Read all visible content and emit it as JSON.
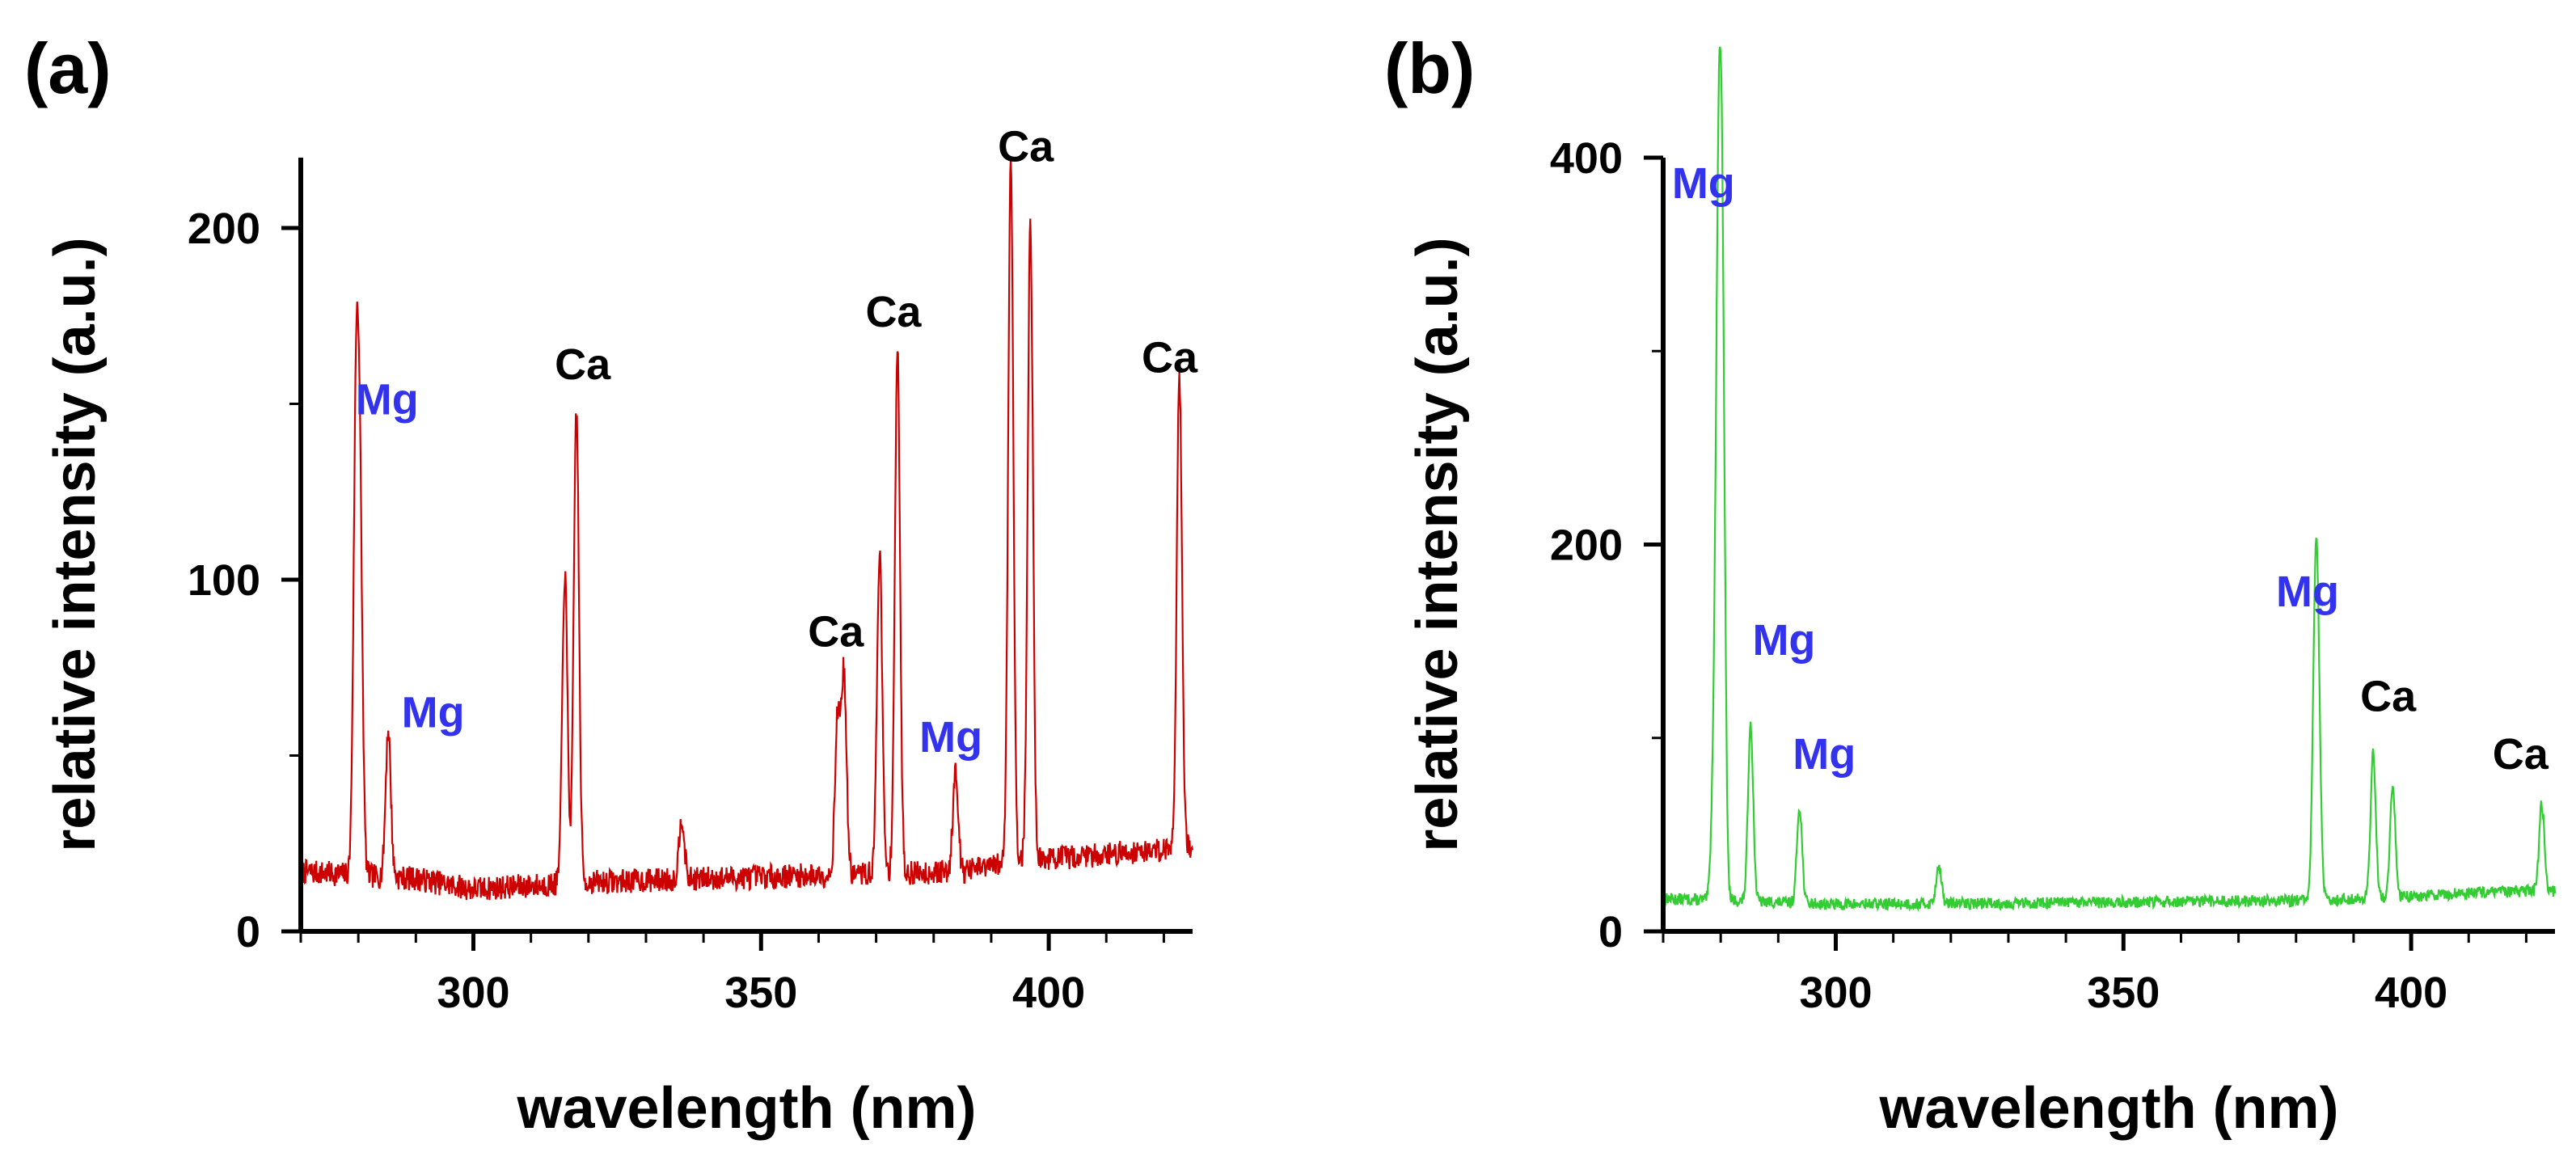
{
  "chart_data": [
    {
      "type": "line",
      "panel_label": "(a)",
      "xlabel": "wavelength (nm)",
      "ylabel": "relative intensity (a.u.)",
      "xlim": [
        270,
        425
      ],
      "ylim": [
        0,
        220
      ],
      "x_ticks": [
        300,
        350,
        400
      ],
      "y_ticks": [
        0,
        100,
        200
      ],
      "grid": false,
      "series": [
        {
          "color": "#cc0000",
          "baseline": [
            [
              270,
              17
            ],
            [
              290,
              15
            ],
            [
              300,
              12
            ],
            [
              320,
              14
            ],
            [
              360,
              16
            ],
            [
              385,
              17
            ],
            [
              395,
              20
            ],
            [
              410,
              22
            ],
            [
              425,
              24
            ]
          ],
          "noise": 3.5,
          "peaks": [
            [
              279.6,
              125
            ],
            [
              280.3,
              92
            ],
            [
              285.2,
              42
            ],
            [
              315.9,
              88
            ],
            [
              317.9,
              135
            ],
            [
              336.2,
              18
            ],
            [
              363.3,
              44
            ],
            [
              364.4,
              56
            ],
            [
              370.6,
              92
            ],
            [
              373.7,
              148
            ],
            [
              383.8,
              30
            ],
            [
              393.4,
              200
            ],
            [
              396.8,
              182
            ],
            [
              422.7,
              135
            ]
          ]
        }
      ],
      "annotations": [
        {
          "text": "Mg",
          "x": 285,
          "y": 147,
          "color": "#3333ee"
        },
        {
          "text": "Mg",
          "x": 293,
          "y": 58,
          "color": "#3333ee"
        },
        {
          "text": "Ca",
          "x": 319,
          "y": 157,
          "color": "#000000"
        },
        {
          "text": "Ca",
          "x": 363,
          "y": 81,
          "color": "#000000"
        },
        {
          "text": "Ca",
          "x": 373,
          "y": 172,
          "color": "#000000"
        },
        {
          "text": "Mg",
          "x": 383,
          "y": 51,
          "color": "#3333ee"
        },
        {
          "text": "Ca",
          "x": 396,
          "y": 219,
          "color": "#000000"
        },
        {
          "text": "Ca",
          "x": 421,
          "y": 159,
          "color": "#000000"
        }
      ]
    },
    {
      "type": "line",
      "panel_label": "(b)",
      "xlabel": "wavelength (nm)",
      "ylabel": "relative intensity (a.u.)",
      "xlim": [
        270,
        425
      ],
      "ylim": [
        0,
        400
      ],
      "x_ticks": [
        300,
        350,
        400
      ],
      "y_ticks": [
        0,
        200,
        400
      ],
      "grid": false,
      "series": [
        {
          "color": "#33cc33",
          "baseline": [
            [
              270,
              17
            ],
            [
              290,
              15
            ],
            [
              300,
              14
            ],
            [
              350,
              15
            ],
            [
              380,
              16
            ],
            [
              400,
              18
            ],
            [
              410,
              20
            ],
            [
              425,
              21
            ]
          ],
          "noise": 3,
          "peaks": [
            [
              279.6,
              310
            ],
            [
              280.3,
              285
            ],
            [
              278.8,
              60
            ],
            [
              285.2,
              92
            ],
            [
              293.7,
              50
            ],
            [
              317.9,
              20
            ],
            [
              383.3,
              118
            ],
            [
              383.8,
              100
            ],
            [
              393.4,
              75
            ],
            [
              396.8,
              58
            ],
            [
              422.7,
              45
            ]
          ]
        }
      ],
      "annotations": [
        {
          "text": "Mg",
          "x": 277,
          "y": 379,
          "color": "#3333ee"
        },
        {
          "text": "Mg",
          "x": 291,
          "y": 143,
          "color": "#3333ee"
        },
        {
          "text": "Mg",
          "x": 298,
          "y": 84,
          "color": "#3333ee"
        },
        {
          "text": "Mg",
          "x": 382,
          "y": 168,
          "color": "#3333ee"
        },
        {
          "text": "Ca",
          "x": 396,
          "y": 114,
          "color": "#000000"
        },
        {
          "text": "Ca",
          "x": 419,
          "y": 84,
          "color": "#000000"
        }
      ]
    }
  ]
}
